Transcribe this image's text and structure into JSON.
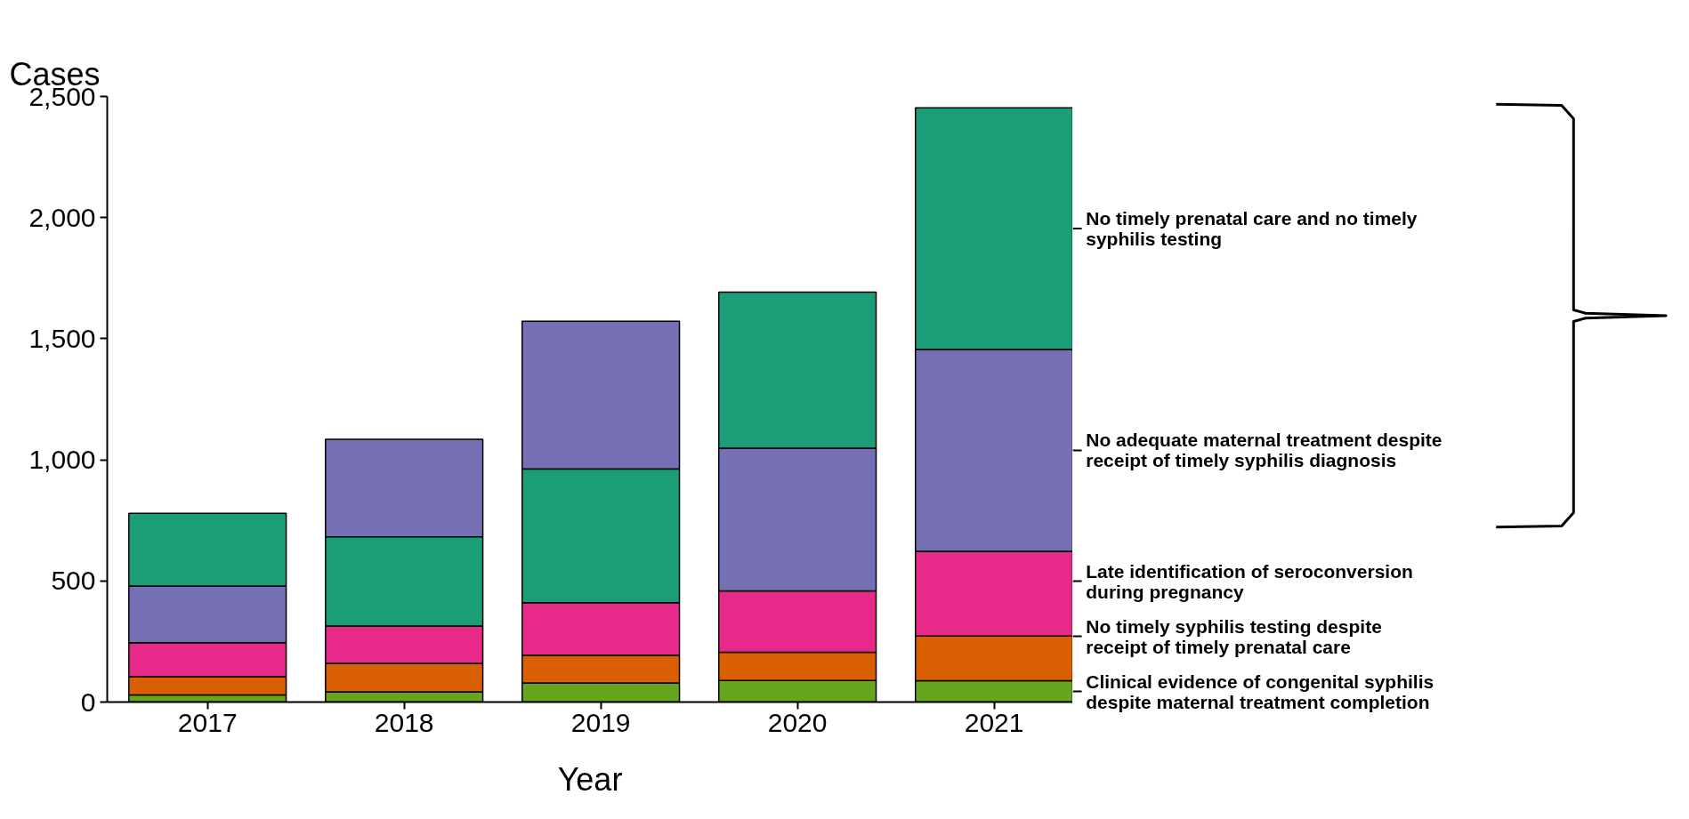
{
  "chart_data": {
    "type": "bar",
    "xlabel": "Year",
    "ylabel": "Cases",
    "categories": [
      "2017",
      "2018",
      "2019",
      "2020",
      "2021"
    ],
    "ylim": [
      0,
      2500
    ],
    "legend": "right",
    "yticks": [
      0,
      500,
      {
        "value": 1000,
        "label": "1,000"
      },
      {
        "value": 1500,
        "label": "1,500"
      },
      {
        "value": 2000,
        "label": "2,000"
      },
      {
        "value": 2500,
        "label": "2,500"
      }
    ],
    "series": [
      {
        "name": "Clinical evidence of congenital syphilis despite maternal treatment completion",
        "color": "#66a61e",
        "base": [
          0,
          0,
          0,
          0,
          0
        ],
        "values": [
          29,
          42,
          79,
          89,
          88
        ]
      },
      {
        "name": "No timely syphilis testing despite receipt of timely prenatal care",
        "color": "#d95f02",
        "base": [
          29,
          42,
          79,
          89,
          88
        ],
        "values": [
          76,
          118,
          115,
          117,
          185
        ]
      },
      {
        "name": "Late identification of seroconversion during pregnancy",
        "color": "#e7298a",
        "base": [
          105,
          160,
          194,
          206,
          273
        ],
        "values": [
          140,
          154,
          216,
          253,
          349
        ]
      },
      {
        "name": "No adequate maternal treatment despite receipt of timely syphilis diagnosis",
        "color": "#7570b3",
        "base": [
          245,
          682,
          962,
          459,
          622
        ],
        "values": [
          234,
          403,
          610,
          589,
          834
        ]
      },
      {
        "name": "No timely prenatal care and no timely syphilis testing",
        "color": "#1b9e77",
        "base": [
          479,
          314,
          410,
          1048,
          1456
        ],
        "values": [
          300,
          368,
          552,
          644,
          997
        ]
      }
    ]
  }
}
